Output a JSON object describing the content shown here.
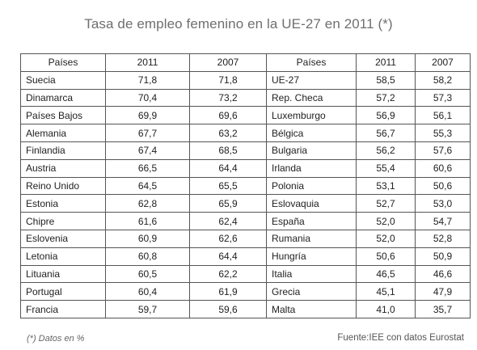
{
  "title": "Tasa de empleo femenino en la UE-27 en 2011 (*)",
  "table": {
    "headers": [
      "Países",
      "2011",
      "2007",
      "Países",
      "2011",
      "2007"
    ],
    "rows": [
      [
        "Suecia",
        "71,8",
        "71,8",
        "UE-27",
        "58,5",
        "58,2"
      ],
      [
        "Dinamarca",
        "70,4",
        "73,2",
        "Rep. Checa",
        "57,2",
        "57,3"
      ],
      [
        "Países Bajos",
        "69,9",
        "69,6",
        "Luxemburgo",
        "56,9",
        "56,1"
      ],
      [
        "Alemania",
        "67,7",
        "63,2",
        "Bélgica",
        "56,7",
        "55,3"
      ],
      [
        "Finlandia",
        "67,4",
        "68,5",
        "Bulgaria",
        "56,2",
        "57,6"
      ],
      [
        "Austria",
        "66,5",
        "64,4",
        "Irlanda",
        "55,4",
        "60,6"
      ],
      [
        "Reino Unido",
        "64,5",
        "65,5",
        "Polonia",
        "53,1",
        "50,6"
      ],
      [
        "Estonia",
        "62,8",
        "65,9",
        "Eslovaquia",
        "52,7",
        "53,0"
      ],
      [
        "Chipre",
        "61,6",
        "62,4",
        "España",
        "52,0",
        "54,7"
      ],
      [
        "Eslovenia",
        "60,9",
        "62,6",
        "Rumania",
        "52,0",
        "52,8"
      ],
      [
        "Letonia",
        "60,8",
        "64,4",
        "Hungría",
        "50,6",
        "50,9"
      ],
      [
        "Lituania",
        "60,5",
        "62,2",
        "Italia",
        "46,5",
        "46,6"
      ],
      [
        "Portugal",
        "60,4",
        "61,9",
        "Grecia",
        "45,1",
        "47,9"
      ],
      [
        "Francia",
        "59,7",
        "59,6",
        "Malta",
        "41,0",
        "35,7"
      ]
    ]
  },
  "footnote": "(*) Datos en %",
  "source": "Fuente:IEE con datos Eurostat"
}
